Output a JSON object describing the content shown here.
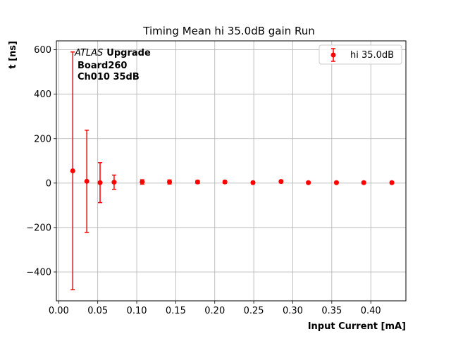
{
  "chart_data": {
    "type": "scatter",
    "title": "Timing Mean hi 35.0dB gain Run",
    "xlabel": "Input Current [mA]",
    "ylabel": "t [ns]",
    "xlim": [
      -0.003,
      0.445
    ],
    "ylim": [
      -530,
      640
    ],
    "xticks": [
      0.0,
      0.05,
      0.1,
      0.15,
      0.2,
      0.25,
      0.3,
      0.35,
      0.4
    ],
    "xtick_labels": [
      "0.00",
      "0.05",
      "0.10",
      "0.15",
      "0.20",
      "0.25",
      "0.30",
      "0.35",
      "0.40"
    ],
    "yticks": [
      -400,
      -200,
      0,
      200,
      400,
      600
    ],
    "ytick_labels": [
      "−400",
      "−200",
      "0",
      "200",
      "400",
      "600"
    ],
    "grid": true,
    "legend_position": "top-right",
    "series": [
      {
        "name": "hi 35.0dB",
        "color": "#ff0000",
        "x": [
          0.018,
          0.036,
          0.053,
          0.071,
          0.107,
          0.142,
          0.178,
          0.213,
          0.249,
          0.285,
          0.32,
          0.356,
          0.391,
          0.427
        ],
        "y": [
          55,
          8,
          2,
          4,
          5,
          5,
          5,
          5,
          2,
          7,
          2,
          2,
          2,
          2
        ],
        "err": [
          535,
          230,
          90,
          32,
          10,
          9,
          7,
          6,
          5,
          6,
          5,
          5,
          5,
          5
        ]
      }
    ],
    "annotations": {
      "experiment": "ATLAS",
      "experiment_suffix": "Upgrade",
      "board": "Board260",
      "channel": "Ch010 35dB"
    }
  }
}
